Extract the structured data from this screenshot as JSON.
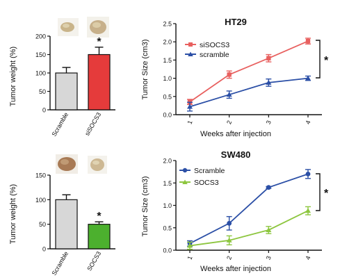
{
  "chart_data": [
    {
      "id": "bar_ht29",
      "type": "bar",
      "ylabel": "Tumor weight (%)",
      "categories": [
        "Scramble",
        "siSOCS3"
      ],
      "values": [
        100,
        150
      ],
      "errors": [
        15,
        20
      ],
      "ylim": [
        0,
        200
      ],
      "yticks": [
        0,
        50,
        100,
        150,
        200
      ],
      "colors": [
        "#d7d7d7",
        "#e53b3b"
      ],
      "annotation": "*",
      "annotation_on": 1
    },
    {
      "id": "line_ht29",
      "type": "line",
      "title": "HT29",
      "xlabel": "Weeks after injection",
      "ylabel": "Tumor Size (cm3)",
      "x": [
        1,
        2,
        3,
        4
      ],
      "ylim": [
        0,
        2.5
      ],
      "yticks": [
        "0.0",
        "0.5",
        "1.0",
        "1.5",
        "2.0",
        "2.5"
      ],
      "series": [
        {
          "name": "siSOCS3",
          "values": [
            0.35,
            1.1,
            1.55,
            2.02
          ],
          "errors": [
            0.07,
            0.1,
            0.1,
            0.08
          ],
          "color": "#e8605f",
          "marker": "square"
        },
        {
          "name": "scramble",
          "values": [
            0.22,
            0.55,
            0.88,
            1.0
          ],
          "errors": [
            0.12,
            0.1,
            0.1,
            0.06
          ],
          "color": "#2b4fa6",
          "marker": "triangle"
        }
      ],
      "legend": "top-left",
      "annotation": "*"
    },
    {
      "id": "bar_sw480",
      "type": "bar",
      "ylabel": "Tumor weight (%)",
      "categories": [
        "Scramble",
        "SOCS3"
      ],
      "values": [
        100,
        50
      ],
      "errors": [
        10,
        5
      ],
      "ylim": [
        0,
        150
      ],
      "yticks": [
        0,
        50,
        100,
        150
      ],
      "colors": [
        "#d7d7d7",
        "#4cb02e"
      ],
      "annotation": "*",
      "annotation_on": 1
    },
    {
      "id": "line_sw480",
      "type": "line",
      "title": "SW480",
      "xlabel": "Weeks after injection",
      "ylabel": "Tumor Size (cm3)",
      "x": [
        1,
        2,
        3,
        4
      ],
      "ylim": [
        0,
        2.0
      ],
      "yticks": [
        "0.0",
        "0.5",
        "1.0",
        "1.5",
        "2.0"
      ],
      "series": [
        {
          "name": "Scramble",
          "values": [
            0.15,
            0.6,
            1.4,
            1.7
          ],
          "errors": [
            0.06,
            0.15,
            0.02,
            0.1
          ],
          "color": "#2b4fa6",
          "marker": "circle"
        },
        {
          "name": "SOCS3",
          "values": [
            0.1,
            0.22,
            0.45,
            0.88
          ],
          "errors": [
            0.08,
            0.1,
            0.08,
            0.09
          ],
          "color": "#8dc63f",
          "marker": "triangle"
        }
      ],
      "legend": "top-left",
      "annotation": "*"
    }
  ]
}
